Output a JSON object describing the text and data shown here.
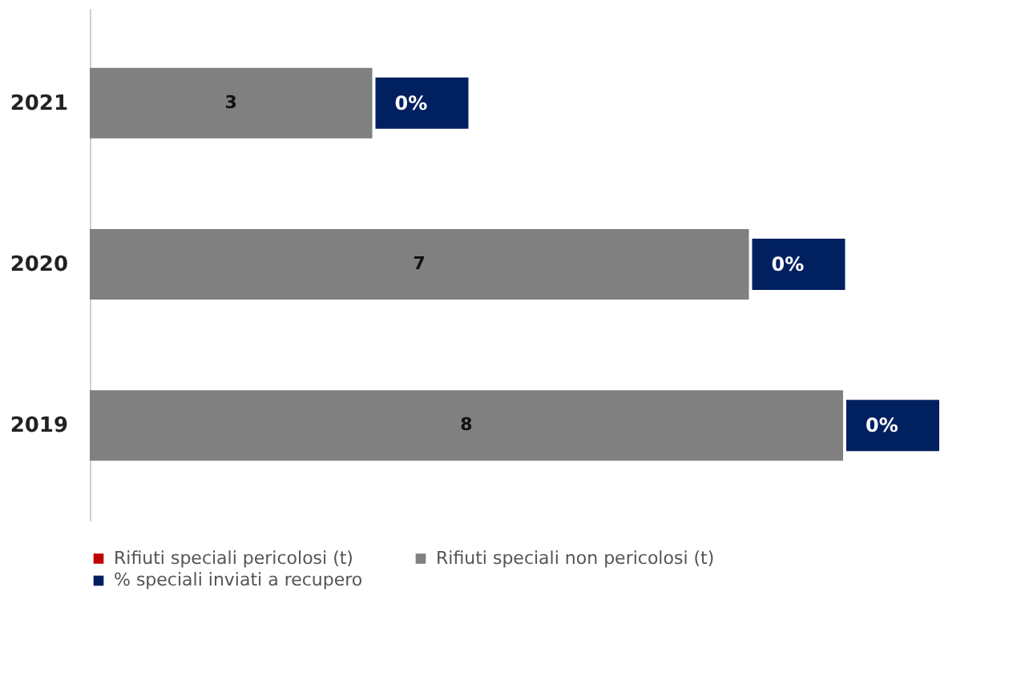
{
  "chart_data": {
    "type": "bar",
    "orientation": "horizontal",
    "stacked": true,
    "categories": [
      "2021",
      "2020",
      "2019"
    ],
    "series": [
      {
        "name": "Rifiuti speciali pericolosi (t)",
        "color": "#c00000",
        "values": [
          0,
          0,
          0
        ]
      },
      {
        "name": "Rifiuti speciali non pericolosi (t)",
        "color": "#808080",
        "values": [
          3,
          7,
          8
        ],
        "value_labels": [
          "3",
          "7",
          "8"
        ]
      },
      {
        "name": "% speciali inviati a recupero",
        "color": "#002060",
        "values": [
          0,
          0,
          0
        ],
        "value_labels": [
          "0%",
          "0%",
          "0%"
        ]
      }
    ],
    "legend": "bottom",
    "grid": false
  }
}
